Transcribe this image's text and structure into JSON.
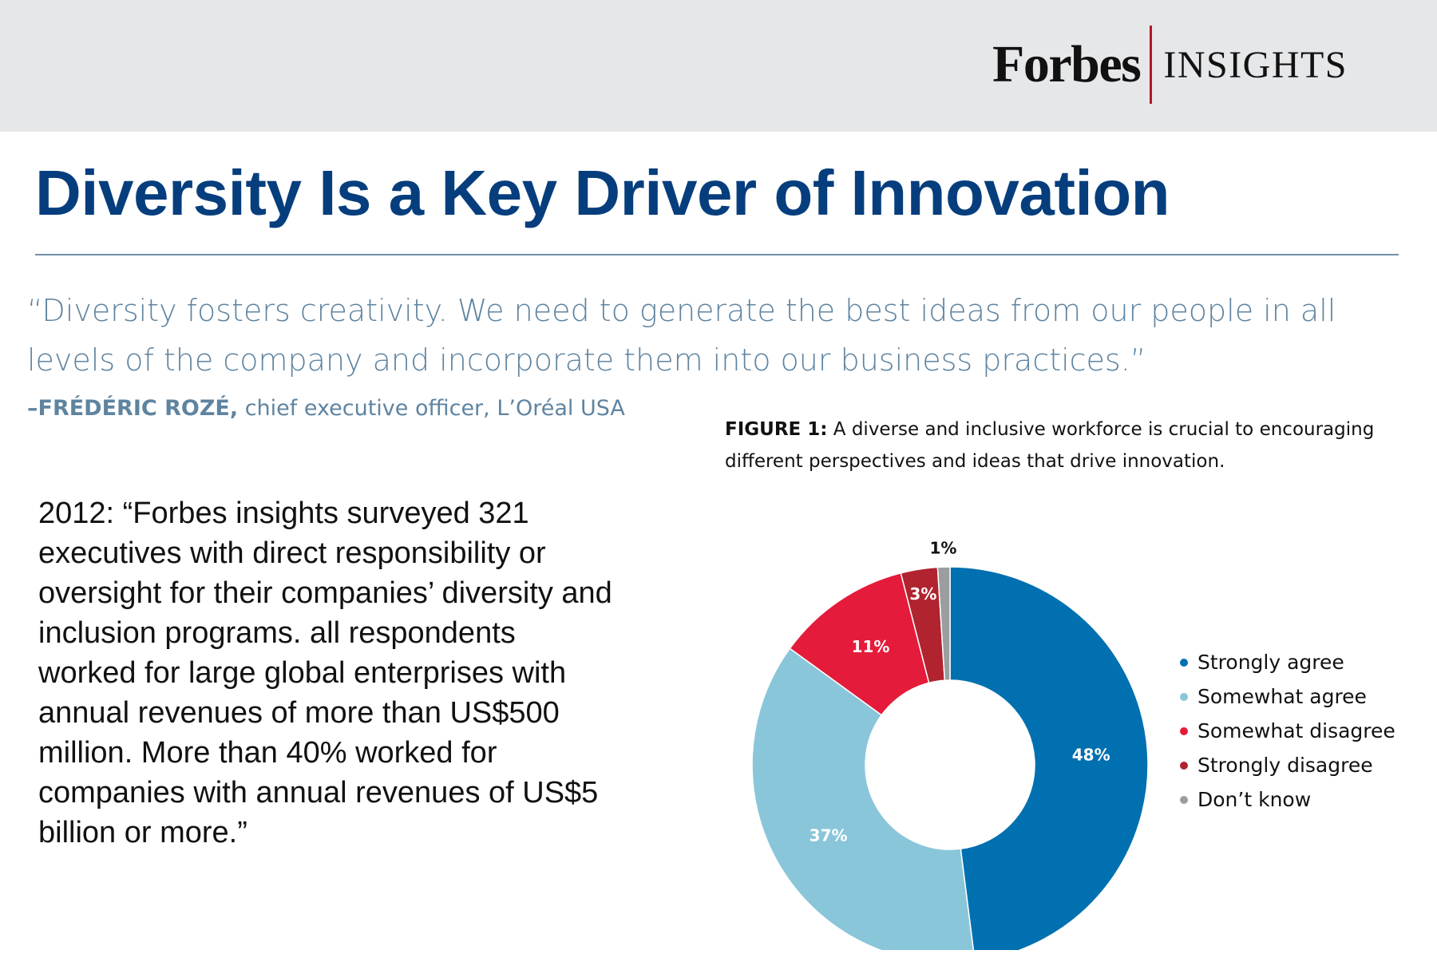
{
  "brand": {
    "name": "Forbes",
    "product": "INSIGHTS"
  },
  "title": "Diversity Is a Key Driver of Innovation",
  "quote": {
    "text": "“Diversity fosters creativity. We need to generate the best ideas from our people in all levels of the company and incorporate them into our business practices.”",
    "name": "–FRÉDÉRIC ROZÉ,",
    "role": "chief executive officer, L’Oréal USA"
  },
  "body": "2012: “Forbes insights surveyed 321 executives with direct responsibility or oversight for their companies’ diversity and inclusion programs. all respondents worked for large global enterprises with annual revenues of more than US$500 million. More than 40% worked for companies with annual revenues of US$5 billion or more.”",
  "figure": {
    "label": "FIGURE 1:",
    "caption": "A diverse and inclusive workforce is crucial to encouraging different perspectives and ideas that drive innovation."
  },
  "chart_data": {
    "type": "pie",
    "donut": true,
    "categories": [
      "Strongly agree",
      "Somewhat agree",
      "Somewhat disagree",
      "Strongly disagree",
      "Don’t know"
    ],
    "values": [
      48,
      37,
      11,
      3,
      1
    ],
    "labels": [
      "48%",
      "37%",
      "11%",
      "3%",
      "1%"
    ],
    "unit": "%",
    "colors": [
      "#0070b0",
      "#8ac6da",
      "#e41b3a",
      "#b0232f",
      "#9b9da0"
    ],
    "start": "12 o'clock",
    "direction": "clockwise",
    "legend": "right"
  }
}
